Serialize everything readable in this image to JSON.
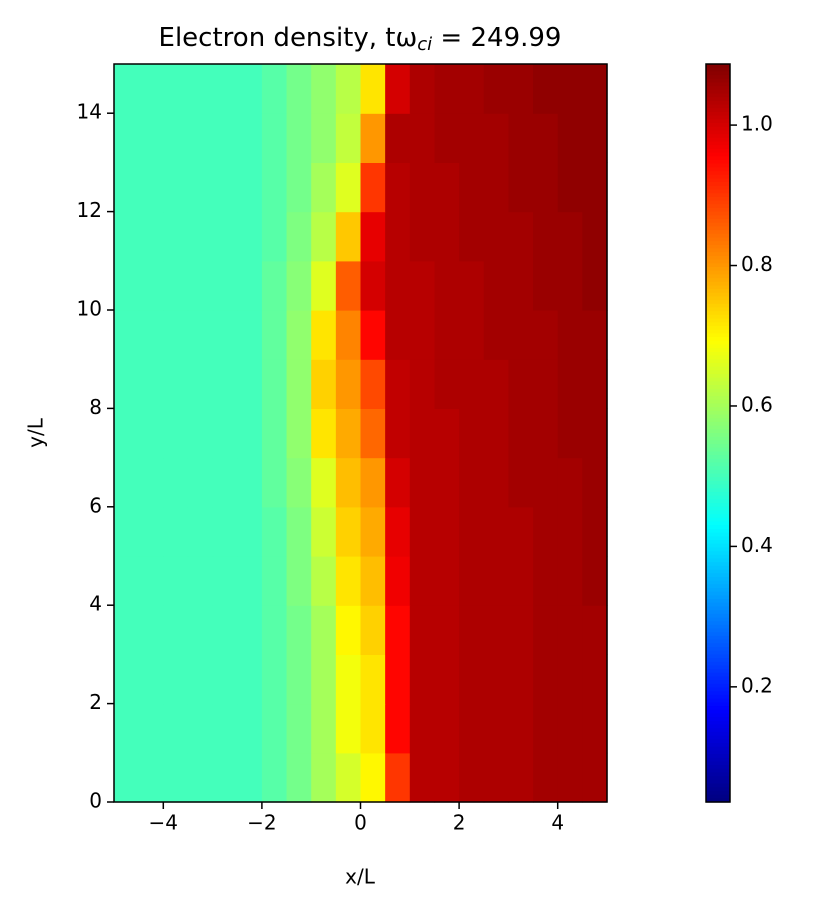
{
  "chart_data": {
    "type": "heatmap",
    "title": {
      "text": "Electron density, tω",
      "subscript": "ci",
      "suffix": " = 249.99"
    },
    "xlabel": "x/L",
    "ylabel": "y/L",
    "xlim": [
      -5,
      5
    ],
    "ylim": [
      0,
      15
    ],
    "xticks": [
      {
        "value": -4,
        "label": "−4"
      },
      {
        "value": -2,
        "label": "−2"
      },
      0,
      2,
      4
    ],
    "yticks": [
      0,
      2,
      4,
      6,
      8,
      10,
      12,
      14
    ],
    "colormap": "jet",
    "clim": [
      0.036,
      1.087
    ],
    "cticks": [
      0.2,
      0.4,
      0.6,
      0.8,
      {
        "value": 1,
        "label": "1.0"
      }
    ],
    "values": [
      [
        0.5,
        0.5,
        0.5,
        0.5,
        0.5,
        0.5,
        0.52,
        0.55,
        0.6,
        0.65,
        0.7,
        0.9,
        1.03,
        1.03,
        1.04,
        1.04,
        1.04,
        1.05,
        1.05,
        1.05
      ],
      [
        0.5,
        0.5,
        0.5,
        0.5,
        0.5,
        0.5,
        0.52,
        0.55,
        0.6,
        0.68,
        0.72,
        0.95,
        1.03,
        1.03,
        1.04,
        1.04,
        1.04,
        1.05,
        1.05,
        1.05
      ],
      [
        0.5,
        0.5,
        0.5,
        0.5,
        0.5,
        0.5,
        0.52,
        0.55,
        0.6,
        0.68,
        0.72,
        0.95,
        1.03,
        1.03,
        1.04,
        1.04,
        1.04,
        1.05,
        1.05,
        1.05
      ],
      [
        0.5,
        0.5,
        0.5,
        0.5,
        0.5,
        0.5,
        0.52,
        0.55,
        0.6,
        0.7,
        0.74,
        0.95,
        1.03,
        1.03,
        1.04,
        1.04,
        1.04,
        1.05,
        1.05,
        1.05
      ],
      [
        0.5,
        0.5,
        0.5,
        0.5,
        0.5,
        0.5,
        0.52,
        0.56,
        0.62,
        0.72,
        0.76,
        0.97,
        1.03,
        1.03,
        1.04,
        1.04,
        1.04,
        1.05,
        1.05,
        1.06
      ],
      [
        0.5,
        0.5,
        0.5,
        0.5,
        0.5,
        0.5,
        0.52,
        0.56,
        0.64,
        0.74,
        0.78,
        0.98,
        1.03,
        1.03,
        1.04,
        1.04,
        1.04,
        1.05,
        1.05,
        1.06
      ],
      [
        0.5,
        0.5,
        0.5,
        0.5,
        0.5,
        0.5,
        0.53,
        0.57,
        0.66,
        0.76,
        0.8,
        1.0,
        1.03,
        1.03,
        1.04,
        1.04,
        1.05,
        1.05,
        1.05,
        1.06
      ],
      [
        0.5,
        0.5,
        0.5,
        0.5,
        0.5,
        0.5,
        0.53,
        0.58,
        0.72,
        0.78,
        0.85,
        1.02,
        1.03,
        1.03,
        1.04,
        1.04,
        1.05,
        1.05,
        1.06,
        1.06
      ],
      [
        0.5,
        0.5,
        0.5,
        0.5,
        0.5,
        0.5,
        0.53,
        0.58,
        0.74,
        0.8,
        0.88,
        1.02,
        1.03,
        1.04,
        1.04,
        1.04,
        1.05,
        1.05,
        1.06,
        1.06
      ],
      [
        0.5,
        0.5,
        0.5,
        0.5,
        0.5,
        0.5,
        0.53,
        0.58,
        0.72,
        0.82,
        0.95,
        1.03,
        1.03,
        1.04,
        1.04,
        1.05,
        1.05,
        1.05,
        1.06,
        1.06
      ],
      [
        0.5,
        0.5,
        0.5,
        0.5,
        0.5,
        0.5,
        0.53,
        0.57,
        0.66,
        0.86,
        1.0,
        1.03,
        1.03,
        1.04,
        1.04,
        1.05,
        1.05,
        1.06,
        1.06,
        1.07
      ],
      [
        0.5,
        0.5,
        0.5,
        0.5,
        0.5,
        0.5,
        0.52,
        0.56,
        0.62,
        0.75,
        0.98,
        1.03,
        1.04,
        1.04,
        1.05,
        1.05,
        1.05,
        1.06,
        1.06,
        1.07
      ],
      [
        0.5,
        0.5,
        0.5,
        0.5,
        0.5,
        0.5,
        0.52,
        0.55,
        0.6,
        0.66,
        0.9,
        1.03,
        1.04,
        1.04,
        1.05,
        1.05,
        1.06,
        1.06,
        1.07,
        1.07
      ],
      [
        0.5,
        0.5,
        0.5,
        0.5,
        0.5,
        0.5,
        0.52,
        0.55,
        0.58,
        0.63,
        0.8,
        1.04,
        1.04,
        1.05,
        1.05,
        1.05,
        1.06,
        1.06,
        1.07,
        1.07
      ],
      [
        0.5,
        0.5,
        0.5,
        0.5,
        0.5,
        0.5,
        0.52,
        0.55,
        0.58,
        0.62,
        0.72,
        1.0,
        1.04,
        1.05,
        1.05,
        1.06,
        1.06,
        1.07,
        1.07,
        1.07
      ]
    ]
  }
}
